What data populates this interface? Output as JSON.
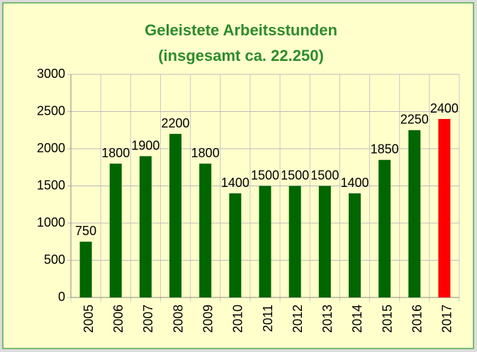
{
  "chart_data": {
    "type": "bar",
    "title": "Geleistete Arbeitsstunden",
    "subtitle": "(insgesamt ca. 22.250)",
    "categories": [
      "2005",
      "2006",
      "2007",
      "2008",
      "2009",
      "2010",
      "2011",
      "2012",
      "2013",
      "2014",
      "2015",
      "2016",
      "2017"
    ],
    "values": [
      750,
      1800,
      1900,
      2200,
      1800,
      1400,
      1500,
      1500,
      1500,
      1400,
      1850,
      2250,
      2400
    ],
    "colors": [
      "#006600",
      "#006600",
      "#006600",
      "#006600",
      "#006600",
      "#006600",
      "#006600",
      "#006600",
      "#006600",
      "#006600",
      "#006600",
      "#006600",
      "#ff0000"
    ],
    "ylim": [
      0,
      3000
    ],
    "yticks": [
      0,
      500,
      1000,
      1500,
      2000,
      2500,
      3000
    ],
    "grid": true
  }
}
